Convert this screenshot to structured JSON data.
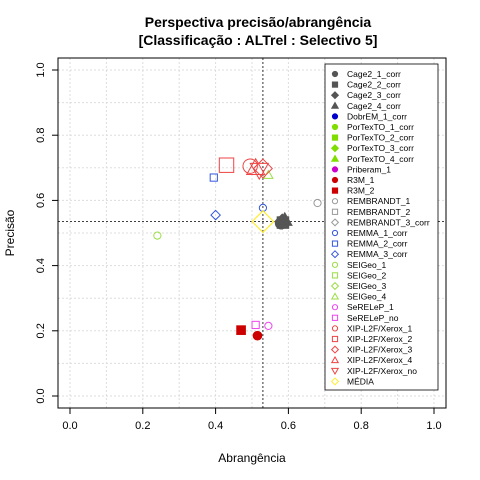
{
  "chart_data": {
    "type": "scatter",
    "title": "Perspectiva precisão/abrangência",
    "subtitle": "[Classificação : ALTrel : Selectivo 5]",
    "xlabel": "Abrangência",
    "ylabel": "Precisão",
    "xlim": [
      0,
      1
    ],
    "ylim": [
      0,
      1
    ],
    "x_ticks": [
      "0.0",
      "0.2",
      "0.4",
      "0.6",
      "0.8",
      "1.0"
    ],
    "y_ticks": [
      "0.0",
      "0.2",
      "0.4",
      "0.6",
      "0.8",
      "1.0"
    ],
    "grid": true,
    "legend_position": "right",
    "reference_lines": {
      "x": 0.53,
      "y": 0.535
    },
    "series": [
      {
        "name": "Cage2_1_corr",
        "marker": "circle",
        "filled": true,
        "color": "#555555",
        "size": 1.6,
        "points": [
          {
            "x": 0.58,
            "y": 0.53
          }
        ]
      },
      {
        "name": "Cage2_2_corr",
        "marker": "square",
        "filled": true,
        "color": "#555555",
        "size": 1.6,
        "points": [
          {
            "x": 0.585,
            "y": 0.532
          }
        ]
      },
      {
        "name": "Cage2_3_corr",
        "marker": "diamond",
        "filled": true,
        "color": "#555555",
        "size": 1.6,
        "points": [
          {
            "x": 0.583,
            "y": 0.535
          }
        ]
      },
      {
        "name": "Cage2_4_corr",
        "marker": "triangle",
        "filled": true,
        "color": "#555555",
        "size": 1.6,
        "points": [
          {
            "x": 0.59,
            "y": 0.54
          }
        ]
      },
      {
        "name": "DobrEM_1_corr",
        "marker": "circle",
        "filled": true,
        "color": "#0000cc",
        "size": 1,
        "points": []
      },
      {
        "name": "PorTexTO_1_corr",
        "marker": "circle",
        "filled": true,
        "color": "#7fdd00",
        "size": 1,
        "points": []
      },
      {
        "name": "PorTexTO_2_corr",
        "marker": "square",
        "filled": true,
        "color": "#7fdd00",
        "size": 1,
        "points": []
      },
      {
        "name": "PorTexTO_3_corr",
        "marker": "diamond",
        "filled": true,
        "color": "#7fdd00",
        "size": 1,
        "points": []
      },
      {
        "name": "PorTexTO_4_corr",
        "marker": "triangle",
        "filled": true,
        "color": "#7fdd00",
        "size": 1,
        "points": []
      },
      {
        "name": "Priberam_1",
        "marker": "circle",
        "filled": true,
        "color": "#cc00cc",
        "size": 1,
        "points": []
      },
      {
        "name": "R3M_1",
        "marker": "circle",
        "filled": true,
        "color": "#cc0000",
        "size": 1.2,
        "points": [
          {
            "x": 0.515,
            "y": 0.185
          }
        ]
      },
      {
        "name": "R3M_2",
        "marker": "square",
        "filled": true,
        "color": "#cc0000",
        "size": 1.2,
        "points": [
          {
            "x": 0.47,
            "y": 0.202
          }
        ]
      },
      {
        "name": "REMBRANDT_1",
        "marker": "circle",
        "filled": false,
        "color": "#999999",
        "size": 1,
        "points": [
          {
            "x": 0.68,
            "y": 0.592
          }
        ]
      },
      {
        "name": "REMBRANDT_2",
        "marker": "square",
        "filled": false,
        "color": "#999999",
        "size": 1,
        "points": []
      },
      {
        "name": "REMBRANDT_3_corr",
        "marker": "diamond",
        "filled": false,
        "color": "#999999",
        "size": 1,
        "points": []
      },
      {
        "name": "REMMA_1_corr",
        "marker": "circle",
        "filled": false,
        "color": "#3355dd",
        "size": 1,
        "points": [
          {
            "x": 0.53,
            "y": 0.577
          }
        ]
      },
      {
        "name": "REMMA_2_corr",
        "marker": "square",
        "filled": false,
        "color": "#3355dd",
        "size": 1,
        "points": [
          {
            "x": 0.395,
            "y": 0.67
          }
        ]
      },
      {
        "name": "REMMA_3_corr",
        "marker": "diamond",
        "filled": false,
        "color": "#3355dd",
        "size": 1,
        "points": [
          {
            "x": 0.4,
            "y": 0.555
          }
        ]
      },
      {
        "name": "SEIGeo_1",
        "marker": "circle",
        "filled": false,
        "color": "#99dd44",
        "size": 1,
        "points": [
          {
            "x": 0.24,
            "y": 0.492
          }
        ]
      },
      {
        "name": "SEIGeo_2",
        "marker": "square",
        "filled": false,
        "color": "#99dd44",
        "size": 1,
        "points": []
      },
      {
        "name": "SEIGeo_3",
        "marker": "diamond",
        "filled": false,
        "color": "#99dd44",
        "size": 1,
        "points": []
      },
      {
        "name": "SEIGeo_4",
        "marker": "triangle",
        "filled": false,
        "color": "#99dd44",
        "size": 1,
        "points": [
          {
            "x": 0.545,
            "y": 0.678
          }
        ]
      },
      {
        "name": "SeRELeP_1",
        "marker": "circle",
        "filled": false,
        "color": "#ee44ee",
        "size": 1,
        "points": [
          {
            "x": 0.545,
            "y": 0.215
          }
        ]
      },
      {
        "name": "SeRELeP_no",
        "marker": "square",
        "filled": false,
        "color": "#ee44ee",
        "size": 1,
        "points": [
          {
            "x": 0.51,
            "y": 0.218
          }
        ]
      },
      {
        "name": "XIP-L2F/Xerox_1",
        "marker": "circle",
        "filled": false,
        "color": "#ee4444",
        "size": 2,
        "points": [
          {
            "x": 0.495,
            "y": 0.705
          }
        ]
      },
      {
        "name": "XIP-L2F/Xerox_2",
        "marker": "square",
        "filled": false,
        "color": "#ee4444",
        "size": 2,
        "points": [
          {
            "x": 0.43,
            "y": 0.708
          }
        ]
      },
      {
        "name": "XIP-L2F/Xerox_3",
        "marker": "diamond",
        "filled": false,
        "color": "#ee4444",
        "size": 2,
        "points": [
          {
            "x": 0.53,
            "y": 0.698
          }
        ]
      },
      {
        "name": "XIP-L2F/Xerox_4",
        "marker": "triangle",
        "filled": false,
        "color": "#ee4444",
        "size": 2,
        "points": [
          {
            "x": 0.51,
            "y": 0.7
          }
        ]
      },
      {
        "name": "XIP-L2F/Xerox_no",
        "marker": "triangle-down",
        "filled": false,
        "color": "#ee4444",
        "size": 2,
        "points": [
          {
            "x": 0.52,
            "y": 0.693
          }
        ]
      },
      {
        "name": "MÉDIA",
        "marker": "diamond",
        "filled": false,
        "color": "#ffee33",
        "size": 2.3,
        "points": [
          {
            "x": 0.53,
            "y": 0.535
          }
        ]
      }
    ]
  }
}
